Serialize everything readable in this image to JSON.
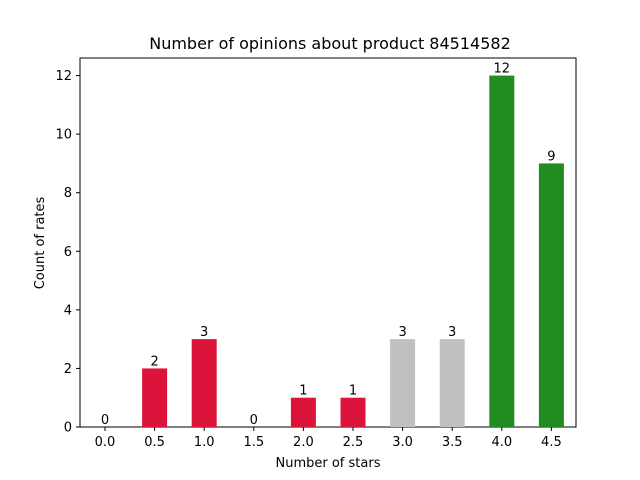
{
  "chart_data": {
    "type": "bar",
    "title": "Number of opinions about product 84514582",
    "xlabel": "Number of stars",
    "ylabel": "Count of rates",
    "categories": [
      "0.0",
      "0.5",
      "1.0",
      "1.5",
      "2.0",
      "2.5",
      "3.0",
      "3.5",
      "4.0",
      "4.5"
    ],
    "values": [
      0,
      2,
      3,
      0,
      1,
      1,
      3,
      3,
      12,
      9
    ],
    "bar_colors": [
      "#dc143c",
      "#dc143c",
      "#dc143c",
      "#dc143c",
      "#dc143c",
      "#dc143c",
      "#c0c0c0",
      "#c0c0c0",
      "#228b22",
      "#228b22"
    ],
    "ylim": [
      0,
      12.6
    ],
    "yticks": [
      0,
      2,
      4,
      6,
      8,
      10,
      12
    ],
    "grid": false,
    "legend": "none"
  }
}
